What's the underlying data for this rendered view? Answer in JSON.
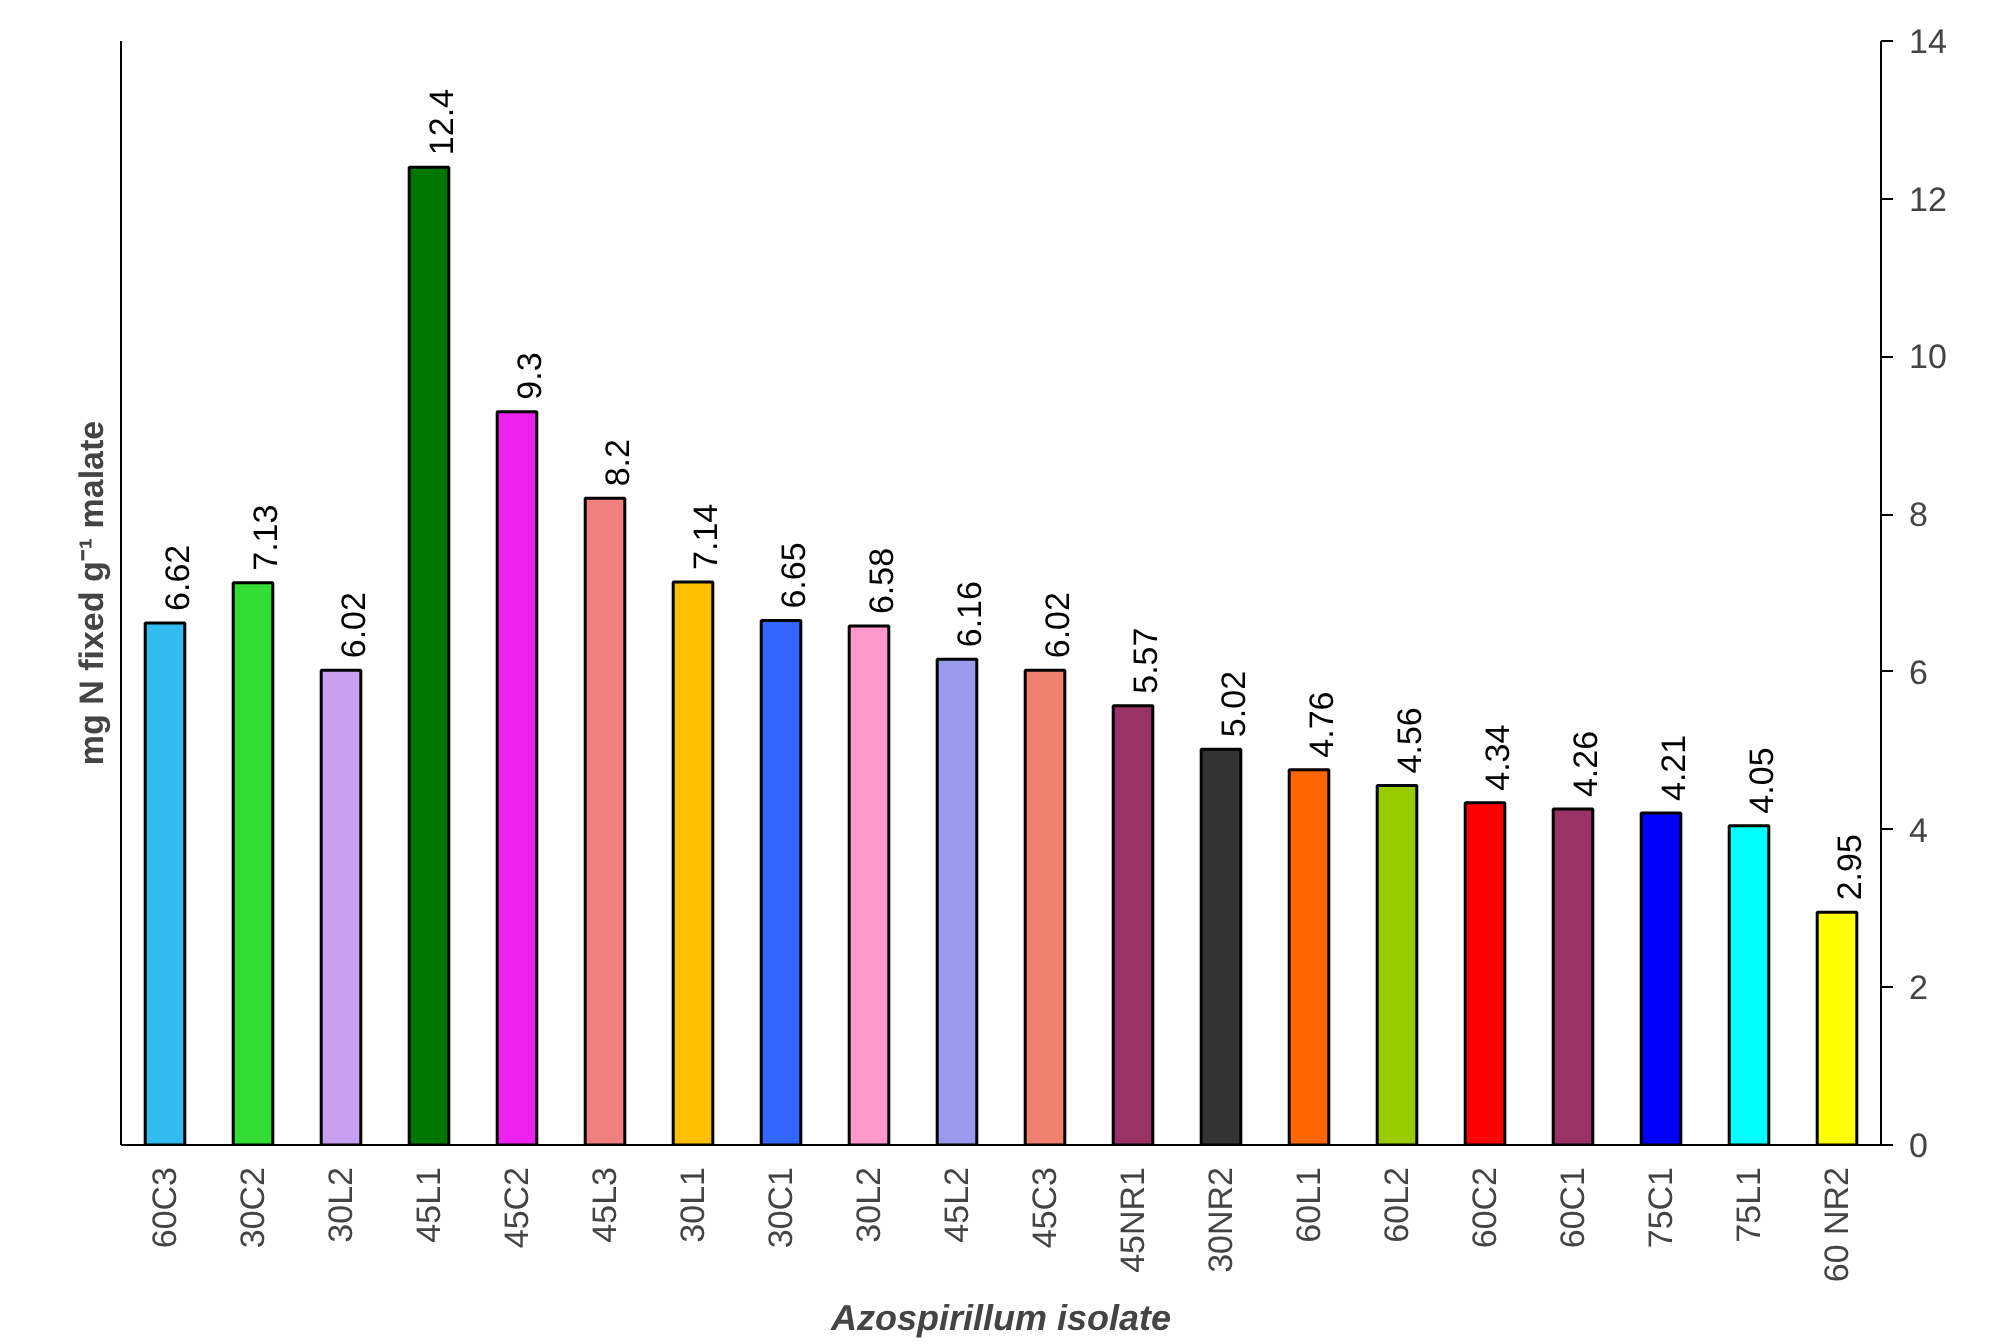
{
  "chart_data": {
    "type": "bar",
    "xlabel": "Azospirillum isolate",
    "ylabel": "mg N fixed g⁻¹ malate",
    "categories": [
      "60C3",
      "30C2",
      "30L2",
      "45L1",
      "45C2",
      "45L3",
      "30L1",
      "30C1",
      "30L2",
      "45L2",
      "45C3",
      "45NR1",
      "30NR2",
      "60L1",
      "60L2",
      "60C2",
      "60C1",
      "75C1",
      "75L1",
      "60 NR2"
    ],
    "values": [
      6.62,
      7.13,
      6.02,
      12.4,
      9.3,
      8.2,
      7.14,
      6.65,
      6.58,
      6.16,
      6.02,
      5.57,
      5.02,
      4.76,
      4.56,
      4.34,
      4.26,
      4.21,
      4.05,
      2.95
    ],
    "colors": [
      "#33bbee",
      "#33dd33",
      "#c8a0f0",
      "#007700",
      "#ee22ee",
      "#f08080",
      "#ffc000",
      "#3366ff",
      "#ff99cc",
      "#9999ee",
      "#f08070",
      "#993366",
      "#333333",
      "#ff6600",
      "#99cc00",
      "#ff0000",
      "#993366",
      "#0000ff",
      "#00ffff",
      "#ffff00"
    ],
    "ylim": [
      0,
      14
    ],
    "yticks": [
      0,
      2,
      4,
      6,
      8,
      10,
      12,
      14
    ],
    "data_labels": true,
    "grid": false
  }
}
